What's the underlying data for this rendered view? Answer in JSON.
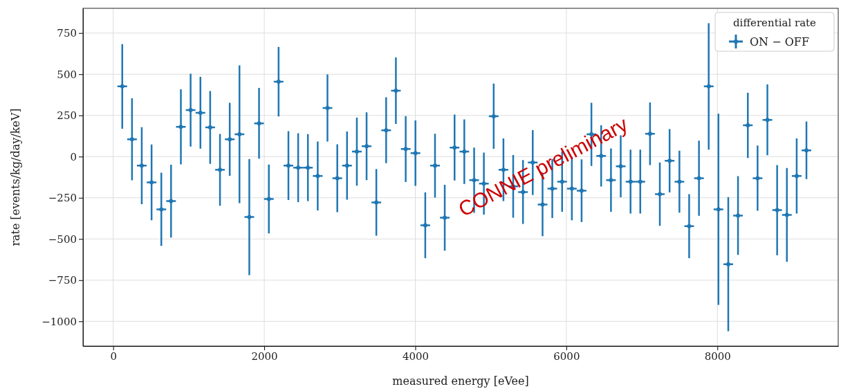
{
  "chart_data": {
    "type": "scatter",
    "xlabel": "measured energy [eVee]",
    "ylabel": "rate [events/kg/day/keV]",
    "legend_title": "differential rate",
    "legend": "top right",
    "grid": true,
    "xlim": [
      -400,
      9600
    ],
    "ylim": [
      -1150,
      900
    ],
    "xticks": [
      0,
      2000,
      4000,
      6000,
      8000
    ],
    "yticks": [
      {
        "value": -1000,
        "label": "−1000"
      },
      {
        "value": -750,
        "label": "−750"
      },
      {
        "value": -500,
        "label": "−500"
      },
      {
        "value": -250,
        "label": "−250"
      },
      0,
      250,
      500,
      750
    ],
    "annotations": [
      "CONNIE preliminary"
    ],
    "series": [
      {
        "name": "ON − OFF",
        "color": "#1f77b4",
        "x": [
          120,
          249,
          378,
          508,
          637,
          766,
          896,
          1025,
          1155,
          1284,
          1414,
          1543,
          1672,
          1802,
          1931,
          2061,
          2190,
          2320,
          2449,
          2578,
          2708,
          2837,
          2967,
          3096,
          3226,
          3355,
          3484,
          3614,
          3743,
          3873,
          4002,
          4132,
          4261,
          4390,
          4520,
          4649,
          4779,
          4908,
          5038,
          5167,
          5296,
          5426,
          5555,
          5685,
          5814,
          5944,
          6073,
          6202,
          6332,
          6461,
          6591,
          6720,
          6850,
          6979,
          7108,
          7238,
          7367,
          7497,
          7626,
          7756,
          7885,
          8014,
          8144,
          8273,
          8403,
          8532,
          8662,
          8791,
          8920,
          9050,
          9179
        ],
        "values": [
          426,
          105,
          -55,
          -156,
          -320,
          -270,
          181,
          282,
          266,
          177,
          -80,
          105,
          135,
          -367,
          202,
          -257,
          455,
          -55,
          -67,
          -67,
          -118,
          295,
          -131,
          -55,
          30,
          63,
          -278,
          160,
          400,
          46,
          21,
          -417,
          -55,
          -371,
          55,
          30,
          -143,
          -164,
          245,
          -80,
          -181,
          -215,
          -36,
          -291,
          -194,
          -152,
          -194,
          -207,
          135,
          4,
          -143,
          -59,
          -152,
          -152,
          139,
          -228,
          -25,
          -152,
          -422,
          -131,
          426,
          -320,
          -653,
          -358,
          190,
          -131,
          223,
          -325,
          -354,
          -118,
          38
        ],
        "errors": [
          257,
          249,
          234,
          230,
          222,
          221,
          228,
          221,
          218,
          221,
          218,
          222,
          418,
          352,
          215,
          209,
          211,
          209,
          209,
          203,
          209,
          204,
          206,
          207,
          206,
          206,
          202,
          200,
          202,
          200,
          198,
          200,
          194,
          200,
          200,
          196,
          198,
          188,
          198,
          190,
          190,
          194,
          197,
          192,
          179,
          183,
          192,
          190,
          192,
          186,
          192,
          188,
          194,
          194,
          190,
          192,
          192,
          188,
          194,
          228,
          384,
          580,
          407,
          239,
          198,
          198,
          215,
          274,
          285,
          228,
          175
        ],
        "xerrors": [
          64,
          64,
          64,
          64,
          64,
          64,
          64,
          64,
          64,
          64,
          64,
          64,
          64,
          64,
          64,
          64,
          64,
          64,
          64,
          64,
          64,
          64,
          64,
          64,
          64,
          64,
          64,
          64,
          64,
          64,
          64,
          64,
          64,
          64,
          64,
          64,
          64,
          64,
          64,
          64,
          64,
          64,
          64,
          64,
          64,
          64,
          64,
          64,
          64,
          64,
          64,
          64,
          64,
          64,
          64,
          64,
          64,
          64,
          64,
          64,
          64,
          64,
          64,
          64,
          64,
          64,
          64,
          64,
          64,
          64,
          64
        ]
      }
    ]
  }
}
